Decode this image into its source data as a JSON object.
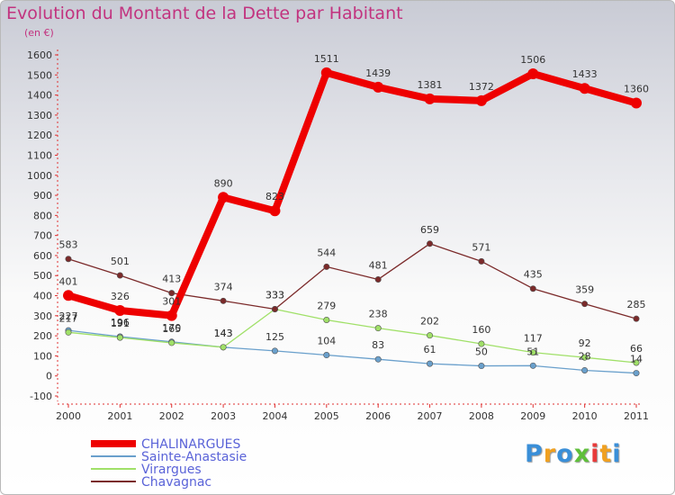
{
  "chart_data": {
    "type": "line",
    "title": "Evolution du Montant de la Dette par Habitant",
    "subtitle": "(en €)",
    "x": [
      "2000",
      "2001",
      "2002",
      "2003",
      "2004",
      "2005",
      "2006",
      "2007",
      "2008",
      "2009",
      "2010",
      "2011"
    ],
    "ylim": [
      -100,
      1600
    ],
    "yticks": [
      -100,
      0,
      100,
      200,
      300,
      400,
      500,
      600,
      700,
      800,
      900,
      1000,
      1100,
      1200,
      1300,
      1400,
      1500,
      1600
    ],
    "grid": false,
    "legend_position": "bottom-left",
    "series": [
      {
        "name": "CHALINARGUES",
        "color": "#ee0000",
        "emphasis": true,
        "values": [
          401,
          326,
          301,
          890,
          823,
          1511,
          1439,
          1381,
          1372,
          1506,
          1433,
          1360
        ]
      },
      {
        "name": "Sainte-Anastasie",
        "color": "#6aa0cc",
        "values": [
          227,
          196,
          170,
          143,
          125,
          104,
          83,
          61,
          50,
          51,
          28,
          14
        ]
      },
      {
        "name": "Virargues",
        "color": "#a0e068",
        "values": [
          217,
          191,
          165,
          143,
          333,
          279,
          238,
          202,
          160,
          117,
          92,
          66
        ]
      },
      {
        "name": "Chavagnac",
        "color": "#7b2a2a",
        "values": [
          583,
          501,
          413,
          374,
          333,
          544,
          481,
          659,
          571,
          435,
          359,
          285
        ]
      }
    ]
  },
  "logo": {
    "letters": [
      "P",
      "r",
      "o",
      "x",
      "i",
      "t",
      "i"
    ],
    "colors": [
      "#3a8fd8",
      "#f0a020",
      "#3a8fd8",
      "#5fbf3a",
      "#e83a3a",
      "#f0a020",
      "#3a8fd8"
    ]
  }
}
